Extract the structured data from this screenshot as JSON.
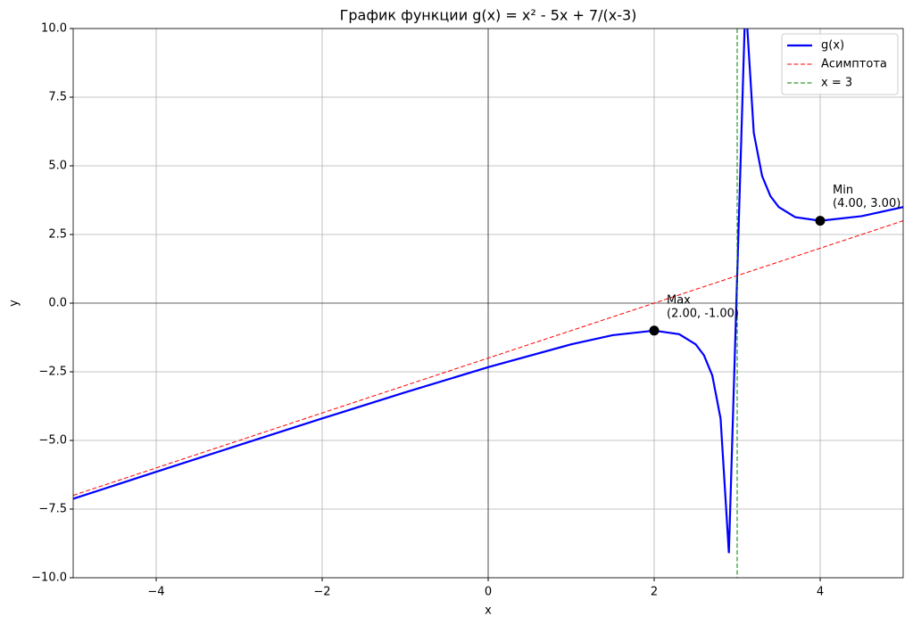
{
  "chart_data": {
    "type": "line",
    "title": "График функции g(x) = x² - 5x + 7/(x-3)",
    "x_label": "x",
    "y_label": "y",
    "xlim": [
      -5,
      5
    ],
    "ylim": [
      -10,
      10
    ],
    "xticks": [
      {
        "value": -4,
        "label": "−4"
      },
      {
        "value": -2,
        "label": "−2"
      },
      0,
      2,
      4
    ],
    "yticks": [
      {
        "value": -10,
        "label": "−10.0"
      },
      {
        "value": -7.5,
        "label": "−7.5"
      },
      {
        "value": -5,
        "label": "−5.0"
      },
      {
        "value": -2.5,
        "label": "−2.5"
      },
      {
        "value": 0,
        "label": "0.0"
      },
      2.5,
      {
        "value": 5,
        "label": "5.0"
      },
      7.5,
      {
        "value": 10,
        "label": "10.0"
      }
    ],
    "grid": true,
    "legend": "upper right",
    "series": [
      {
        "name": "g(x)",
        "color": "#0000ff",
        "style": "solid",
        "x": [
          -5,
          -4,
          -3,
          -2,
          -1,
          0,
          1,
          1.5,
          2,
          2.3,
          2.5,
          2.6,
          2.7,
          2.8,
          2.9,
          3.1,
          3.2,
          3.3,
          3.4,
          3.5,
          3.7,
          4,
          4.5,
          5
        ],
        "values": [
          -7.125,
          -6.143,
          -5.167,
          -4.2,
          -3.25,
          -2.333,
          -1.5,
          -1.167,
          -1,
          -1.129,
          -1.5,
          -1.9,
          -2.633,
          -4.2,
          -9.1,
          11.1,
          6.2,
          4.633,
          3.9,
          3.5,
          3.129,
          3,
          3.167,
          3.5
        ]
      },
      {
        "name": "Асимптота",
        "color": "#ff0000",
        "style": "dashed",
        "x": [
          -5,
          5
        ],
        "values": [
          -7,
          3
        ]
      },
      {
        "name": "x = 3",
        "color": "#008000",
        "style": "dashed",
        "vline": 3
      }
    ],
    "annotations": [
      {
        "x": 2,
        "y": -1,
        "text": [
          "Max",
          "(2.00, -1.00)"
        ]
      },
      {
        "x": 4,
        "y": 3,
        "text": [
          "Min",
          "(4.00, 3.00)"
        ]
      }
    ]
  }
}
